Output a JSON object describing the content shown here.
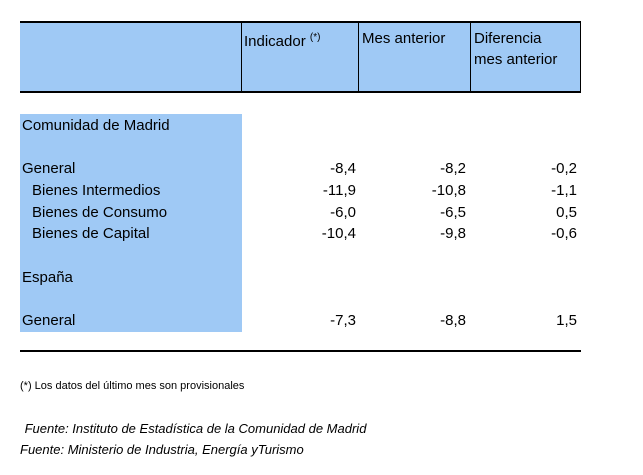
{
  "table": {
    "headers": {
      "indicador": "Indicador",
      "indicador_mark": "(*)",
      "mes_anterior": "Mes anterior",
      "diferencia_line1": "Diferencia",
      "diferencia_line2": "mes anterior"
    },
    "sections": [
      {
        "title": "Comunidad de Madrid",
        "rows": [
          {
            "label": "General",
            "indicador": "-8,4",
            "mes_anterior": "-8,2",
            "diferencia": "-0,2"
          },
          {
            "label": "Bienes Intermedios",
            "indicador": "-11,9",
            "mes_anterior": "-10,8",
            "diferencia": "-1,1"
          },
          {
            "label": "Bienes de Consumo",
            "indicador": "-6,0",
            "mes_anterior": "-6,5",
            "diferencia": "0,5"
          },
          {
            "label": "Bienes de Capital",
            "indicador": "-10,4",
            "mes_anterior": "-9,8",
            "diferencia": "-0,6"
          }
        ]
      },
      {
        "title": "España",
        "rows": [
          {
            "label": "General",
            "indicador": "-7,3",
            "mes_anterior": "-8,8",
            "diferencia": "1,5"
          }
        ]
      }
    ]
  },
  "footnote": "(*) Los datos del último mes son provisionales",
  "sources": [
    " Fuente: Instituto de Estadística de la Comunidad de Madrid",
    "Fuente: Ministerio de Industria, Energía yTurismo"
  ],
  "colors": {
    "band": "#9fc9f5"
  }
}
